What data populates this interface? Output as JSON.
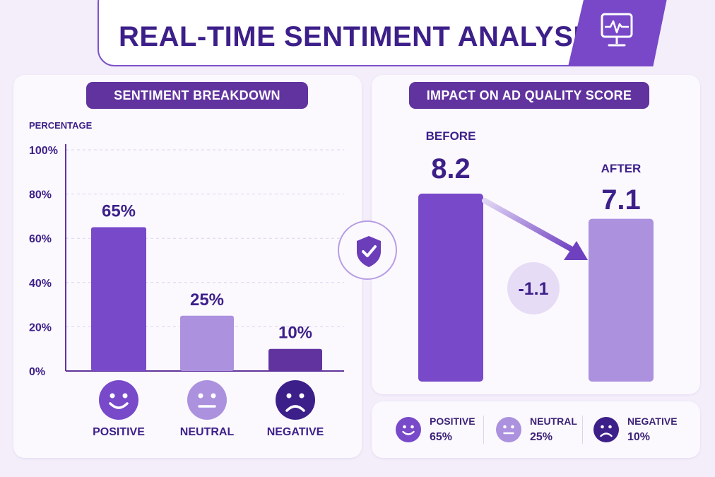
{
  "header": {
    "title": "REAL-TIME SENTIMENT ANALYSIS",
    "icon": "monitor-pulse-icon"
  },
  "center_icon": "shield-check-icon",
  "colors": {
    "dark": "#61339e",
    "primary": "#7849c9",
    "light": "#ac91df",
    "navy": "#3d1f8a",
    "badge_fill": "#e6dcf5"
  },
  "breakdown": {
    "title": "SENTIMENT BREAKDOWN",
    "ylabel": "PERCENTAGE"
  },
  "impact": {
    "title": "IMPACT ON AD QUALITY SCORE",
    "change_label": "-1.1"
  },
  "legend": [
    {
      "name": "POSITIVE",
      "value": "65%",
      "icon": "smile-icon"
    },
    {
      "name": "NEUTRAL",
      "value": "25%",
      "icon": "neutral-face-icon"
    },
    {
      "name": "NEGATIVE",
      "value": "10%",
      "icon": "frown-icon"
    }
  ],
  "chart_data": [
    {
      "type": "bar",
      "title": "SENTIMENT BREAKDOWN",
      "ylabel": "PERCENTAGE",
      "categories": [
        "POSITIVE",
        "NEUTRAL",
        "NEGATIVE"
      ],
      "values": [
        65,
        25,
        10
      ],
      "value_labels": [
        "65%",
        "25%",
        "10%"
      ],
      "yticks": [
        "0%",
        "20%",
        "40%",
        "60%",
        "80%",
        "100%"
      ],
      "ylim": [
        0,
        100
      ],
      "grid": true,
      "icons": [
        "smile-icon",
        "neutral-face-icon",
        "frown-icon"
      ]
    },
    {
      "type": "bar",
      "title": "IMPACT ON AD QUALITY SCORE",
      "categories": [
        "BEFORE",
        "AFTER"
      ],
      "values": [
        8.2,
        7.1
      ],
      "value_labels": [
        "8.2",
        "7.1"
      ],
      "change": "-1.1"
    }
  ]
}
